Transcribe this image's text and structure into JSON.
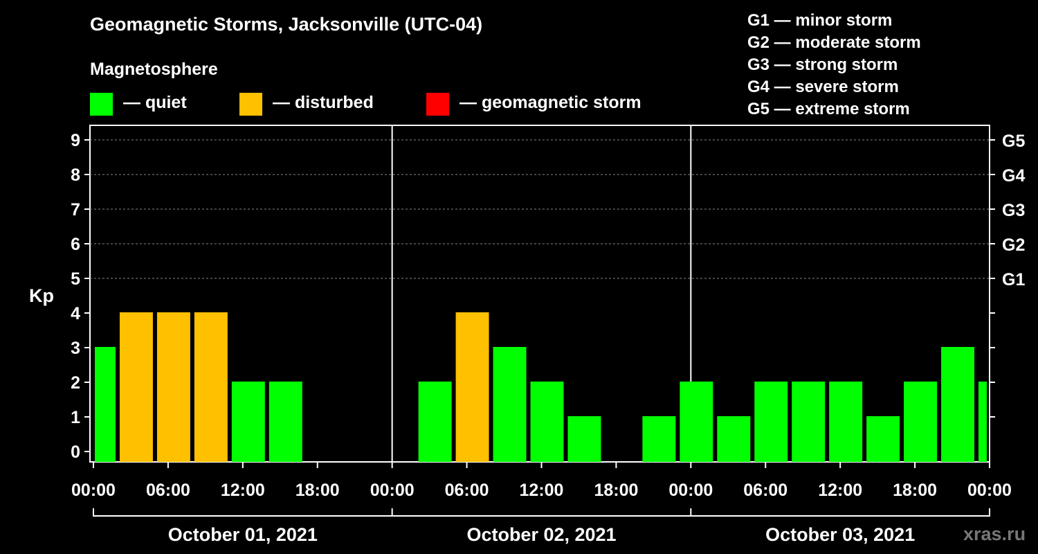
{
  "header": {
    "title": "Geomagnetic Storms, Jacksonville (UTC-04)",
    "subtitle": "Magnetosphere"
  },
  "legend": [
    {
      "label": "— quiet",
      "color": "#00ff00"
    },
    {
      "label": "— disturbed",
      "color": "#ffc000"
    },
    {
      "label": "— geomagnetic storm",
      "color": "#ff0000"
    }
  ],
  "g_scale": [
    "G1 — minor storm",
    "G2 — moderate storm",
    "G3 — strong storm",
    "G4 — severe storm",
    "G5 — extreme storm"
  ],
  "watermark": "xras.ru",
  "chart_data": {
    "type": "bar",
    "title": "Geomagnetic Storms, Jacksonville (UTC-04)",
    "ylabel": "Kp",
    "ylim": [
      0,
      9
    ],
    "y_ticks": [
      "0",
      "1",
      "2",
      "3",
      "4",
      "5",
      "6",
      "7",
      "8",
      "9"
    ],
    "right_ticks": [
      {
        "kp": 5,
        "label": "G1"
      },
      {
        "kp": 6,
        "label": "G2"
      },
      {
        "kp": 7,
        "label": "G3"
      },
      {
        "kp": 8,
        "label": "G4"
      },
      {
        "kp": 9,
        "label": "G5"
      }
    ],
    "x_tick_labels": [
      "00:00",
      "06:00",
      "12:00",
      "18:00",
      "00:00",
      "06:00",
      "12:00",
      "18:00",
      "00:00",
      "06:00",
      "12:00",
      "18:00",
      "00:00"
    ],
    "dates": [
      "October 01, 2021",
      "October 02, 2021",
      "October 03, 2021"
    ],
    "grid": true,
    "colors": {
      "quiet": "#00ff00",
      "disturbed": "#ffc000",
      "storm": "#ff0000"
    },
    "bars": [
      {
        "start_hour": 0,
        "end_hour": 2,
        "kp": 3,
        "status": "quiet"
      },
      {
        "start_hour": 2,
        "end_hour": 5,
        "kp": 4,
        "status": "disturbed"
      },
      {
        "start_hour": 5,
        "end_hour": 8,
        "kp": 4,
        "status": "disturbed"
      },
      {
        "start_hour": 8,
        "end_hour": 11,
        "kp": 4,
        "status": "disturbed"
      },
      {
        "start_hour": 11,
        "end_hour": 14,
        "kp": 2,
        "status": "quiet"
      },
      {
        "start_hour": 14,
        "end_hour": 17,
        "kp": 2,
        "status": "quiet"
      },
      {
        "start_hour": 26,
        "end_hour": 29,
        "kp": 2,
        "status": "quiet"
      },
      {
        "start_hour": 29,
        "end_hour": 32,
        "kp": 4,
        "status": "disturbed"
      },
      {
        "start_hour": 32,
        "end_hour": 35,
        "kp": 3,
        "status": "quiet"
      },
      {
        "start_hour": 35,
        "end_hour": 38,
        "kp": 2,
        "status": "quiet"
      },
      {
        "start_hour": 38,
        "end_hour": 41,
        "kp": 1,
        "status": "quiet"
      },
      {
        "start_hour": 44,
        "end_hour": 47,
        "kp": 1,
        "status": "quiet"
      },
      {
        "start_hour": 47,
        "end_hour": 50,
        "kp": 2,
        "status": "quiet"
      },
      {
        "start_hour": 50,
        "end_hour": 53,
        "kp": 1,
        "status": "quiet"
      },
      {
        "start_hour": 53,
        "end_hour": 56,
        "kp": 2,
        "status": "quiet"
      },
      {
        "start_hour": 56,
        "end_hour": 59,
        "kp": 2,
        "status": "quiet"
      },
      {
        "start_hour": 59,
        "end_hour": 62,
        "kp": 2,
        "status": "quiet"
      },
      {
        "start_hour": 62,
        "end_hour": 65,
        "kp": 1,
        "status": "quiet"
      },
      {
        "start_hour": 65,
        "end_hour": 68,
        "kp": 2,
        "status": "quiet"
      },
      {
        "start_hour": 68,
        "end_hour": 71,
        "kp": 3,
        "status": "quiet"
      },
      {
        "start_hour": 71,
        "end_hour": 72,
        "kp": 2,
        "status": "quiet"
      }
    ]
  }
}
